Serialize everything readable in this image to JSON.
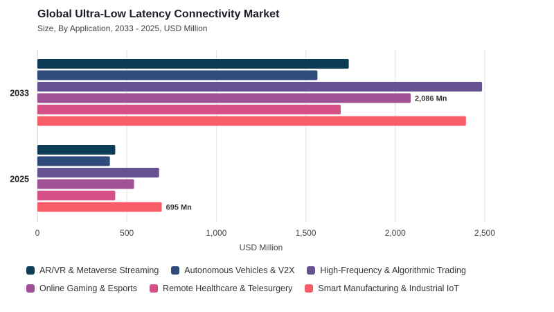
{
  "header": {
    "title": "Global Ultra-Low Latency Connectivity Market",
    "subtitle": "Size, By Application, 2033 - 2025, USD Million"
  },
  "chart_data": {
    "type": "bar",
    "orientation": "horizontal",
    "categories": [
      "2033",
      "2025"
    ],
    "series": [
      {
        "name": "AR/VR & Metaverse Streaming",
        "color": "#0d3d56",
        "values": [
          1740,
          435
        ]
      },
      {
        "name": "Autonomous Vehicles & V2X",
        "color": "#2f4b7c",
        "values": [
          1565,
          405
        ]
      },
      {
        "name": "High-Frequency & Algorithmic Trading",
        "color": "#665191",
        "values": [
          2485,
          680
        ]
      },
      {
        "name": "Online Gaming & Esports",
        "color": "#a05195",
        "values": [
          2086,
          540
        ]
      },
      {
        "name": "Remote Healthcare & Telesurgery",
        "color": "#d45087",
        "values": [
          1695,
          435
        ]
      },
      {
        "name": "Smart Manufacturing & Industrial IoT",
        "color": "#f95d6a",
        "values": [
          2395,
          695
        ]
      }
    ],
    "data_labels": [
      {
        "category": "2033",
        "series": "Online Gaming & Esports",
        "text": "2,086 Mn"
      },
      {
        "category": "2025",
        "series": "Smart Manufacturing & Industrial IoT",
        "text": "695 Mn"
      }
    ],
    "xlabel": "USD Million",
    "xlim": [
      0,
      2500
    ],
    "xticks": [
      0,
      500,
      1000,
      1500,
      2000,
      2500
    ],
    "xtick_labels": [
      "0",
      "500",
      "1,000",
      "1,500",
      "2,000",
      "2,500"
    ],
    "grid": "vertical",
    "legend": "bottom"
  }
}
